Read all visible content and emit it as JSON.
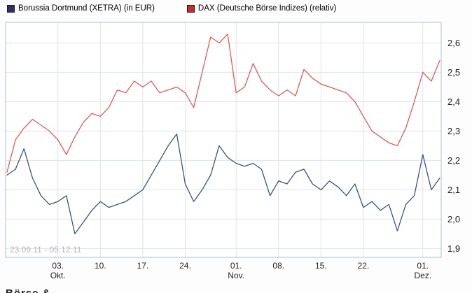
{
  "legend": [
    {
      "label": "Borussia Dortmund (XETRA) (in EUR)",
      "color": "#2e2e66"
    },
    {
      "label": "DAX (Deutsche Börse Indizes) (relativ)",
      "color": "#cc2a2a"
    }
  ],
  "footer_partial": "Börse &",
  "chart_data": {
    "type": "line",
    "title": "",
    "xlabel": "",
    "ylabel": "",
    "date_range": "23.09.11 - 05.12.11",
    "ylim": [
      1.87,
      2.67
    ],
    "grid": true,
    "legend_position": "top",
    "y_axis_side": "right",
    "y_ticks": [
      1.9,
      2.0,
      2.1,
      2.2,
      2.3,
      2.4,
      2.5,
      2.6
    ],
    "y_tick_labels": [
      "1,9",
      "2,0",
      "2,1",
      "2,2",
      "2,3",
      "2,4",
      "2,5",
      "2,6"
    ],
    "x_ticks": [
      {
        "i": 6,
        "label": "03.",
        "sub": "Okt."
      },
      {
        "i": 11,
        "label": "10.",
        "sub": ""
      },
      {
        "i": 16,
        "label": "17.",
        "sub": ""
      },
      {
        "i": 21,
        "label": "24.",
        "sub": ""
      },
      {
        "i": 27,
        "label": "01.",
        "sub": "Nov."
      },
      {
        "i": 32,
        "label": "08.",
        "sub": ""
      },
      {
        "i": 37,
        "label": "15.",
        "sub": ""
      },
      {
        "i": 42,
        "label": "22.",
        "sub": ""
      },
      {
        "i": 49,
        "label": "01.",
        "sub": "Dez."
      }
    ],
    "x_dates": [
      "23.09",
      "26.09",
      "27.09",
      "28.09",
      "29.09",
      "30.09",
      "03.10",
      "04.10",
      "05.10",
      "06.10",
      "07.10",
      "10.10",
      "11.10",
      "12.10",
      "13.10",
      "14.10",
      "17.10",
      "18.10",
      "19.10",
      "20.10",
      "21.10",
      "24.10",
      "25.10",
      "26.10",
      "27.10",
      "28.10",
      "31.10",
      "01.11",
      "02.11",
      "03.11",
      "04.11",
      "07.11",
      "08.11",
      "09.11",
      "10.11",
      "11.11",
      "14.11",
      "15.11",
      "16.11",
      "17.11",
      "18.11",
      "21.11",
      "22.11",
      "23.11",
      "24.11",
      "25.11",
      "28.11",
      "29.11",
      "30.11",
      "01.12",
      "02.12",
      "05.12"
    ],
    "series": [
      {
        "id": "bvb",
        "name": "Borussia Dortmund (XETRA) (in EUR)",
        "color": "#3a5180",
        "values": [
          2.15,
          2.17,
          2.24,
          2.14,
          2.08,
          2.05,
          2.06,
          2.08,
          1.95,
          1.99,
          2.03,
          2.06,
          2.04,
          2.05,
          2.06,
          2.08,
          2.1,
          2.15,
          2.2,
          2.25,
          2.29,
          2.12,
          2.06,
          2.1,
          2.15,
          2.25,
          2.21,
          2.19,
          2.18,
          2.19,
          2.17,
          2.08,
          2.13,
          2.12,
          2.16,
          2.17,
          2.12,
          2.1,
          2.13,
          2.11,
          2.08,
          2.12,
          2.04,
          2.06,
          2.03,
          2.05,
          1.96,
          2.05,
          2.08,
          2.22,
          2.1,
          2.14
        ]
      },
      {
        "id": "dax",
        "name": "DAX (Deutsche Börse Indizes) (relativ)",
        "color": "#e25a52",
        "values": [
          2.16,
          2.27,
          2.31,
          2.34,
          2.32,
          2.3,
          2.27,
          2.22,
          2.28,
          2.33,
          2.36,
          2.35,
          2.38,
          2.44,
          2.43,
          2.47,
          2.45,
          2.47,
          2.43,
          2.44,
          2.45,
          2.43,
          2.38,
          2.5,
          2.62,
          2.6,
          2.63,
          2.43,
          2.45,
          2.53,
          2.47,
          2.44,
          2.42,
          2.44,
          2.42,
          2.51,
          2.48,
          2.46,
          2.45,
          2.44,
          2.43,
          2.4,
          2.35,
          2.3,
          2.28,
          2.26,
          2.25,
          2.31,
          2.4,
          2.5,
          2.47,
          2.54
        ]
      }
    ]
  }
}
